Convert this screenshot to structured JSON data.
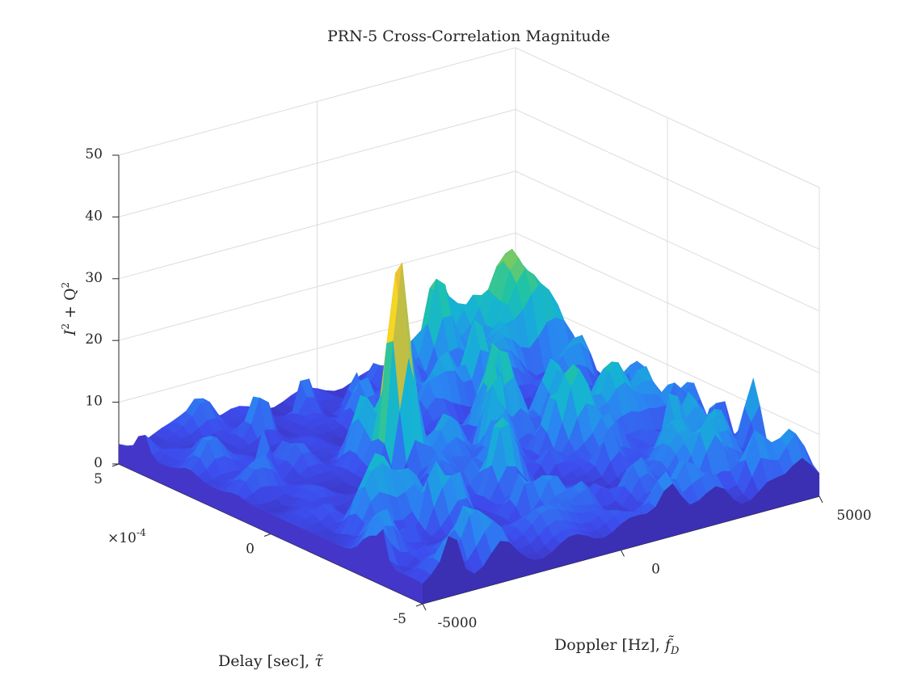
{
  "chart_data": {
    "type": "surface",
    "title": "PRN-5 Cross-Correlation Magnitude",
    "x": {
      "label": "Doppler [Hz], ",
      "label_math": "f̃",
      "label_math_sub": "D",
      "range": [
        -5000,
        5000
      ],
      "ticks": [
        -5000,
        0,
        5000
      ],
      "tick_labels": [
        "-5000",
        "0",
        "5000"
      ]
    },
    "y": {
      "label": "Delay [sec], ",
      "label_math": "τ̃",
      "range": [
        -5,
        5
      ],
      "scale_exponent": "×10",
      "scale_exponent_power": "-4",
      "ticks": [
        -5,
        0,
        5
      ],
      "tick_labels": [
        "-5",
        "0",
        "5"
      ]
    },
    "z": {
      "label_base": "I",
      "label_sup": "2",
      "label_mid": " + Q",
      "label_sup2": "2",
      "range": [
        0,
        50
      ],
      "ticks": [
        0,
        10,
        20,
        30,
        40,
        50
      ],
      "tick_labels": [
        "0",
        "10",
        "20",
        "30",
        "40",
        "50"
      ]
    },
    "grid": true,
    "colormap": "parula",
    "colormap_stops": [
      "#3e26a8",
      "#3d4dee",
      "#2b85f2",
      "#16b2d6",
      "#20c3a5",
      "#7ecb5d",
      "#d9b93c",
      "#f5c52d",
      "#f9fb15"
    ],
    "peak": {
      "doppler": -1500,
      "delay": 0.3,
      "value": 36
    },
    "noise_floor": {
      "mean": 5,
      "max": 12
    }
  }
}
